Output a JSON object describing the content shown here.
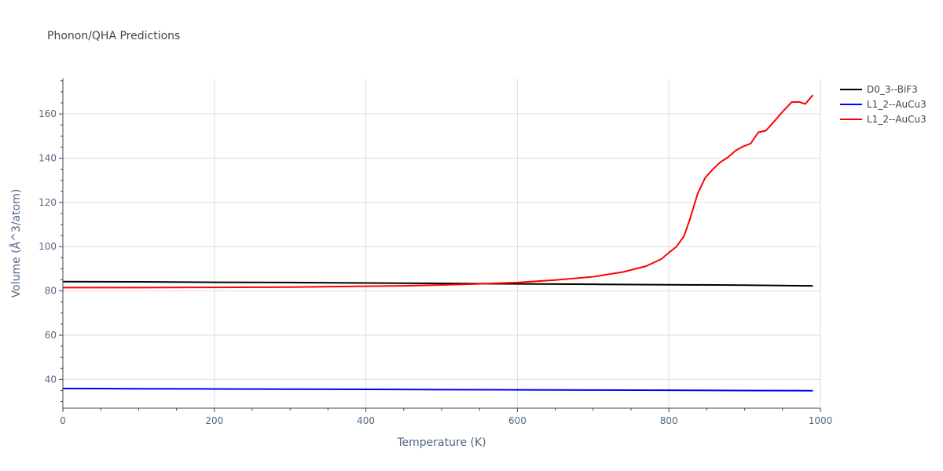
{
  "chart_data": {
    "type": "line",
    "title": "Phonon/QHA Predictions",
    "xlabel": "Temperature (K)",
    "ylabel": "Volume (Å^3/atom)",
    "xlim": [
      0,
      1000
    ],
    "ylim": [
      27,
      176
    ],
    "xticks": [
      0,
      200,
      400,
      600,
      800,
      1000
    ],
    "yticks": [
      40,
      60,
      80,
      100,
      120,
      140,
      160
    ],
    "grid": true,
    "legend_position": "top-right",
    "series": [
      {
        "name": "D0_3--BiF3",
        "color": "#000000",
        "x": [
          0,
          100,
          200,
          300,
          400,
          500,
          600,
          700,
          800,
          900,
          990
        ],
        "y": [
          84.2,
          84.1,
          83.9,
          83.8,
          83.6,
          83.4,
          83.2,
          83.0,
          82.8,
          82.6,
          82.3
        ]
      },
      {
        "name": "L1_2--AuCu3",
        "color": "#0000ff",
        "x": [
          0,
          100,
          200,
          300,
          400,
          500,
          600,
          700,
          800,
          900,
          990
        ],
        "y": [
          35.9,
          35.8,
          35.7,
          35.6,
          35.5,
          35.4,
          35.3,
          35.2,
          35.1,
          35.0,
          34.9
        ]
      },
      {
        "name": "L1_2--AuCu3",
        "color": "#ff0000",
        "x": [
          0,
          100,
          200,
          300,
          400,
          450,
          500,
          550,
          600,
          650,
          700,
          740,
          770,
          790,
          800,
          810,
          820,
          828,
          838,
          848,
          858,
          868,
          878,
          888,
          898,
          908,
          918,
          928,
          940,
          950,
          962,
          972,
          980,
          990
        ],
        "y": [
          81.5,
          81.5,
          81.6,
          81.7,
          82.1,
          82.3,
          82.7,
          83.2,
          83.8,
          84.9,
          86.4,
          88.6,
          91.2,
          94.4,
          97.3,
          100.0,
          104.8,
          112.7,
          124.0,
          131.2,
          135.0,
          138.2,
          140.4,
          143.4,
          145.3,
          146.6,
          151.7,
          152.4,
          157.0,
          161.0,
          165.3,
          165.4,
          164.5,
          168.5
        ]
      }
    ]
  }
}
